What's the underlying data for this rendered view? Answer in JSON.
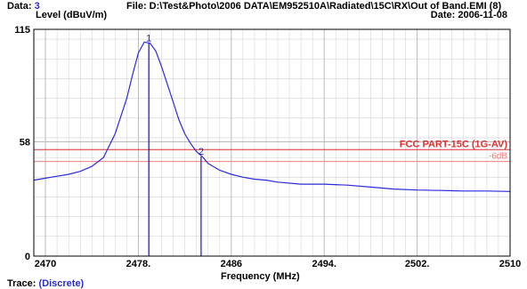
{
  "header": {
    "data_label": "Data:",
    "data_value": "3",
    "file_text": "File: D:\\Test&Photo\\2006 DATA\\EM952510A\\Radiated\\15C\\RX\\Out of Band.EMI  (8)",
    "date_text": "Date: 2006-11-08"
  },
  "footer": {
    "trace_label": "Trace:",
    "trace_value": "(Discrete)"
  },
  "colors": {
    "trace": "#2a2ae0",
    "marker": "#1a1ab0",
    "limit": "#e03030",
    "limit_6db": "#f08080",
    "grid": "#b4b4b4",
    "frame": "#000000"
  },
  "chart_data": {
    "type": "line",
    "ylabel": "Level (dBuV/m)",
    "xlabel": "Frequency (MHz)",
    "xlim": [
      2469,
      2510
    ],
    "ylim": [
      0,
      115
    ],
    "grid": true,
    "x_ticks": [
      2470,
      2478,
      2486,
      2494,
      2502,
      2510
    ],
    "x_tick_labels": [
      "2470",
      "2478.",
      "2486",
      "2494.",
      "2502.",
      "2510"
    ],
    "y_ticks": [
      0,
      58,
      115
    ],
    "y_tick_labels": [
      "0",
      "58",
      "115"
    ],
    "limit_lines": [
      {
        "name": "FCC PART-15C (1G-AV)",
        "value": 54
      },
      {
        "name": "-6dB",
        "value": 48
      }
    ],
    "markers": [
      {
        "label": "1",
        "x": 2478.9,
        "y": 108
      },
      {
        "label": "2",
        "x": 2483.4,
        "y": 50.5
      }
    ],
    "series": [
      {
        "x": [
          2469,
          2470,
          2471,
          2472,
          2473,
          2474,
          2475,
          2476,
          2477,
          2477.5,
          2478,
          2478.5,
          2479,
          2479.5,
          2480,
          2480.5,
          2481,
          2481.5,
          2482,
          2482.5,
          2483,
          2483.5,
          2484,
          2485,
          2486,
          2487,
          2488,
          2489,
          2490,
          2492,
          2494,
          2496,
          2498,
          2500,
          2502,
          2504,
          2506,
          2508,
          2510
        ],
        "values": [
          38.5,
          39.5,
          40.5,
          41.5,
          43,
          45.5,
          50,
          62,
          80,
          92,
          103,
          108.5,
          108,
          104,
          96,
          87,
          78,
          69,
          62,
          57,
          53,
          50.5,
          47,
          43.5,
          41.5,
          40,
          39,
          38.5,
          37.5,
          36.5,
          36.5,
          36,
          35,
          34,
          33.5,
          33.3,
          33,
          33,
          32.8
        ]
      }
    ]
  }
}
